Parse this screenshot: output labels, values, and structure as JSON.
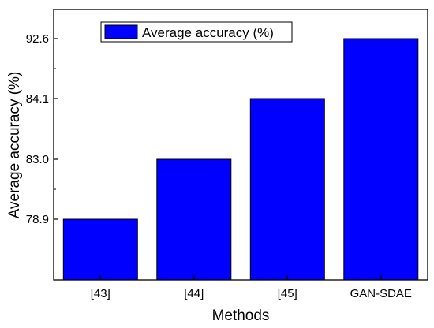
{
  "chart_data": {
    "type": "bar",
    "categories": [
      "[43]",
      "[44]",
      "[45]",
      "GAN-SDAE"
    ],
    "series": [
      {
        "name": "Average accuracy (%)",
        "values": [
          78.9,
          83.0,
          84.1,
          92.6
        ],
        "color": "#0000ff"
      }
    ],
    "y_tick_labels": [
      "78.9",
      "83.0",
      "84.1",
      "92.6"
    ],
    "y_tick_levels": [
      1,
      2,
      3,
      4
    ],
    "y_scale": "categorical-rank (ticks evenly spaced regardless of value)",
    "bar_heights_by_rank": [
      1,
      2,
      3,
      4
    ],
    "xlabel": "Methods",
    "ylabel": "Average accuracy (%)",
    "legend": {
      "position": "top-left",
      "label": "Average accuracy (%)"
    },
    "grid": false
  }
}
